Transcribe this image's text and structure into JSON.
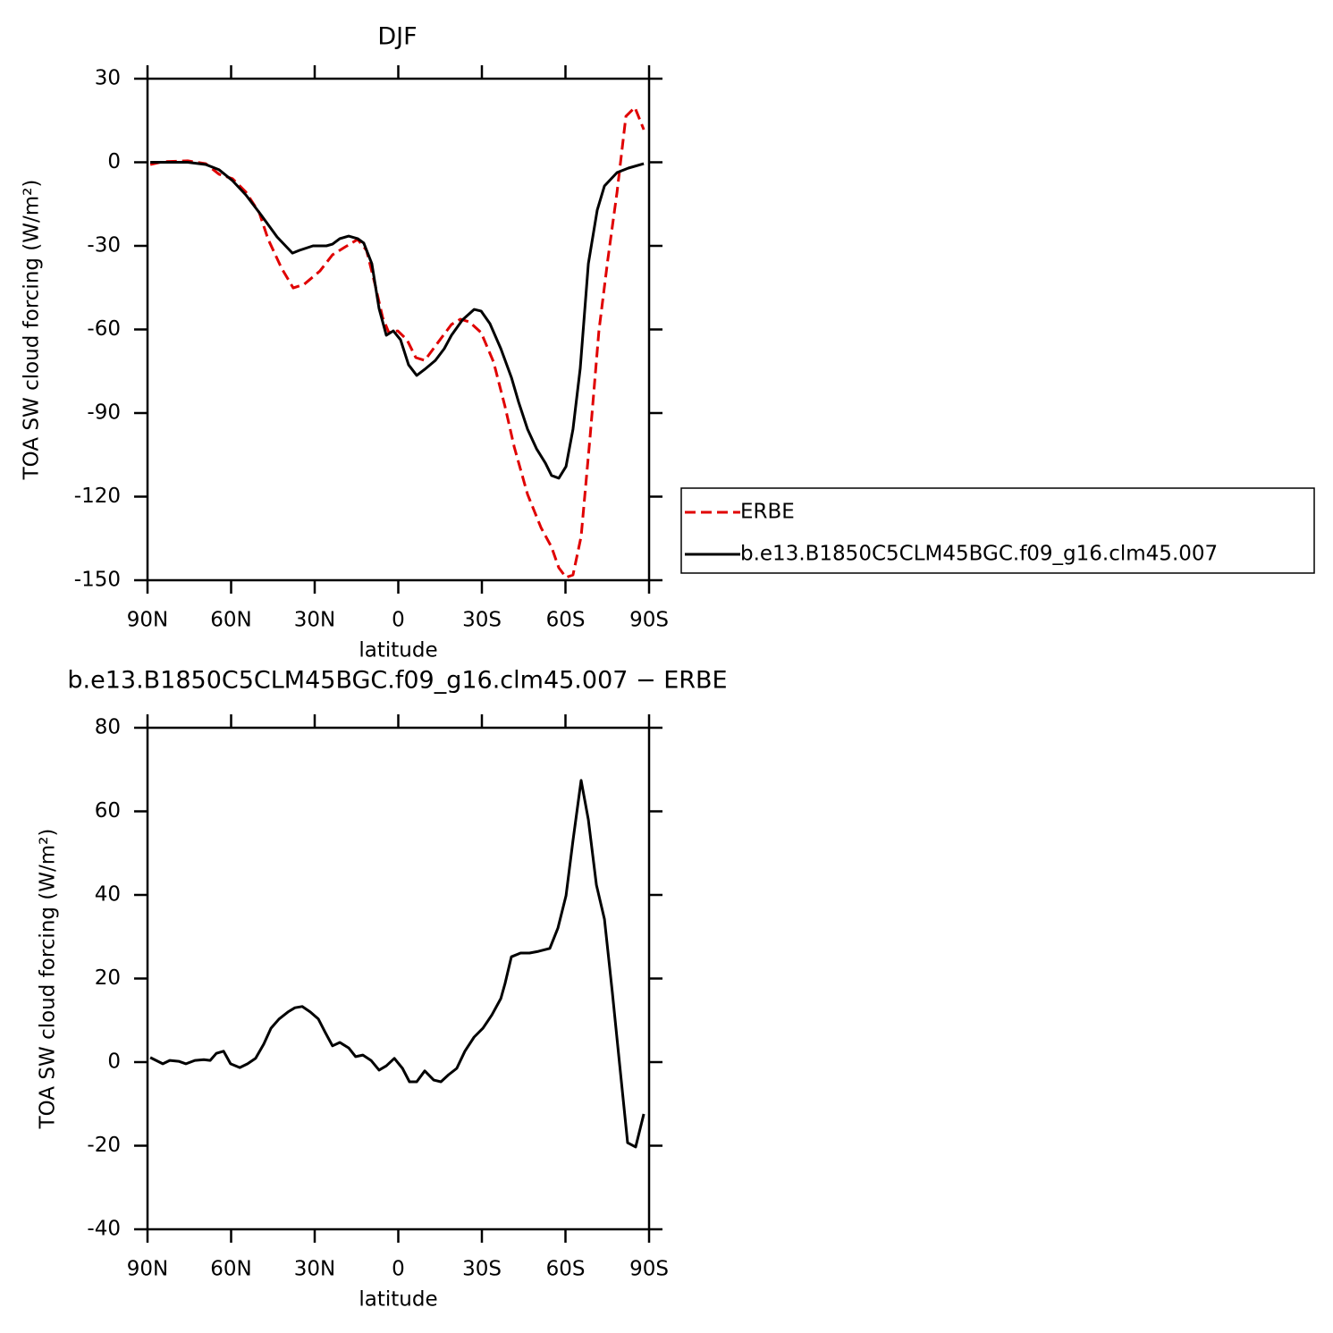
{
  "chart_data": [
    {
      "type": "line",
      "title": "DJF",
      "x_label": "latitude",
      "y_label": "TOA SW cloud forcing (W/m²)",
      "xlim": [
        90,
        -90
      ],
      "xticks": [
        {
          "value": 90,
          "label": "90N"
        },
        {
          "value": 60,
          "label": "60N"
        },
        {
          "value": 30,
          "label": "30N"
        },
        0,
        {
          "value": -30,
          "label": "30S"
        },
        {
          "value": -60,
          "label": "60S"
        },
        {
          "value": -90,
          "label": "90S"
        }
      ],
      "ylim": [
        -150,
        30
      ],
      "yticks": [
        -150,
        -120,
        -90,
        -60,
        -30,
        0,
        30
      ],
      "legend": "right",
      "series": [
        {
          "name": "ERBE",
          "color": "#e00000",
          "line_style": "dashed",
          "x": [
            89,
            84.5,
            75.6,
            69.1,
            64.3,
            59.5,
            54.7,
            49.9,
            46.7,
            41.9,
            37.7,
            33.8,
            28.1,
            23.6,
            19.4,
            14.6,
            11.4,
            8.2,
            5.6,
            3.4,
            0.2,
            -3.1,
            -6.3,
            -9.5,
            -14.3,
            -19.1,
            -22.3,
            -25.5,
            -29.7,
            -34.2,
            -38.3,
            -41.6,
            -46.4,
            -51.2,
            -55.0,
            -57.6,
            -60.2,
            -62.7,
            -65.6,
            -68.8,
            -72.0,
            -75.2,
            -78.5,
            -81.7,
            -84.9,
            -88.1
          ],
          "values": [
            -0.8,
            0.2,
            0.5,
            -0.5,
            -4.3,
            -5.9,
            -10.7,
            -18.1,
            -27.7,
            -38.0,
            -45.1,
            -43.8,
            -39.0,
            -33.2,
            -30.6,
            -27.7,
            -31.6,
            -44.4,
            -55.7,
            -61.1,
            -60.5,
            -63.7,
            -70.1,
            -71.1,
            -64.6,
            -58.2,
            -56.3,
            -57.3,
            -61.1,
            -71.7,
            -87.7,
            -102.2,
            -119.2,
            -131.1,
            -138.1,
            -145.5,
            -149,
            -148.1,
            -134.3,
            -99.0,
            -60.5,
            -34.8,
            -10.7,
            16.5,
            19.7,
            11.7
          ]
        },
        {
          "name": "b.e13.B1850C5CLM45BGC.f09_g16.clm45.007",
          "color": "#000000",
          "line_style": "solid",
          "x": [
            89,
            75.6,
            69.1,
            64.3,
            59.5,
            54.7,
            49.3,
            43.5,
            38.0,
            35.5,
            30.6,
            25.8,
            23.6,
            21.0,
            17.8,
            14.6,
            12.4,
            9.5,
            6.9,
            4.3,
            1.8,
            -0.8,
            -3.7,
            -6.6,
            -9.5,
            -13.3,
            -16.5,
            -19.1,
            -23.0,
            -27.2,
            -29.7,
            -32.9,
            -36.8,
            -40.6,
            -43.2,
            -46.4,
            -49.6,
            -52.8,
            -55.0,
            -57.6,
            -60.2,
            -62.7,
            -65.3,
            -68.2,
            -71.4,
            -74.0,
            -78.5,
            -82.6,
            -88.1
          ],
          "values": [
            0,
            0,
            -0.8,
            -2.7,
            -6.6,
            -11.7,
            -18.8,
            -26.8,
            -32.6,
            -31.6,
            -30.0,
            -30.0,
            -29.4,
            -27.4,
            -26.5,
            -27.4,
            -29.0,
            -36.4,
            -52.5,
            -62.1,
            -60.5,
            -63.7,
            -72.7,
            -76.5,
            -74.3,
            -71.1,
            -66.9,
            -62.1,
            -56.6,
            -52.8,
            -53.4,
            -57.9,
            -66.9,
            -77.2,
            -86.1,
            -95.8,
            -102.8,
            -108,
            -112.4,
            -113.4,
            -109.2,
            -95.8,
            -74.0,
            -36.4,
            -17.2,
            -8.5,
            -3.7,
            -2.1,
            -0.5
          ]
        }
      ]
    },
    {
      "type": "line",
      "title": "b.e13.B1850C5CLM45BGC.f09_g16.clm45.007 − ERBE",
      "x_label": "latitude",
      "y_label": "TOA SW cloud forcing (W/m²)",
      "xlim": [
        90,
        -90
      ],
      "xticks": [
        {
          "value": 90,
          "label": "90N"
        },
        {
          "value": 60,
          "label": "60N"
        },
        {
          "value": 30,
          "label": "30N"
        },
        0,
        {
          "value": -30,
          "label": "30S"
        },
        {
          "value": -60,
          "label": "60S"
        },
        {
          "value": -90,
          "label": "90S"
        }
      ],
      "ylim": [
        -40,
        80
      ],
      "yticks": [
        -40,
        -20,
        0,
        20,
        40,
        60,
        80
      ],
      "series": [
        {
          "color": "#000000",
          "line_style": "solid",
          "x": [
            89.0,
            84.5,
            82.0,
            78.8,
            76.2,
            73.0,
            69.8,
            67.5,
            65.3,
            62.7,
            60.2,
            56.9,
            54.1,
            51.2,
            48.3,
            45.7,
            42.8,
            39.6,
            37.1,
            34.5,
            31.6,
            28.7,
            26.2,
            23.6,
            21.0,
            17.8,
            15.3,
            12.7,
            9.8,
            6.9,
            4.3,
            1.4,
            -1.5,
            -4.0,
            -6.6,
            -9.5,
            -12.7,
            -15.3,
            -18.1,
            -21.0,
            -23.9,
            -27.2,
            -30.4,
            -33.6,
            -36.8,
            -38.3,
            -40.6,
            -43.9,
            -47.1,
            -50.3,
            -54.4,
            -57.3,
            -60.2,
            -62.7,
            -65.6,
            -68.2,
            -71.1,
            -74.0,
            -76.8,
            -79.4,
            -82.3,
            -85.2,
            -88.1
          ],
          "values": [
            1.1,
            -0.4,
            0.4,
            0.2,
            -0.4,
            0.4,
            0.6,
            0.4,
            2.1,
            2.6,
            -0.4,
            -1.3,
            -0.4,
            0.9,
            4.3,
            8.1,
            10.3,
            12.0,
            13.0,
            13.3,
            12.0,
            10.3,
            7.1,
            3.9,
            4.7,
            3.4,
            1.3,
            1.7,
            0.4,
            -1.9,
            -0.9,
            0.9,
            -1.5,
            -4.7,
            -4.7,
            -2.1,
            -4.3,
            -4.7,
            -3.0,
            -1.5,
            2.6,
            6.0,
            8.1,
            11.3,
            15.2,
            18.8,
            25.2,
            26.1,
            26.1,
            26.5,
            27.2,
            32.1,
            39.8,
            53.0,
            67.4,
            58.0,
            42.4,
            34.2,
            16.7,
            -0.4,
            -19.3,
            -20.3,
            -12.4
          ]
        }
      ]
    }
  ]
}
